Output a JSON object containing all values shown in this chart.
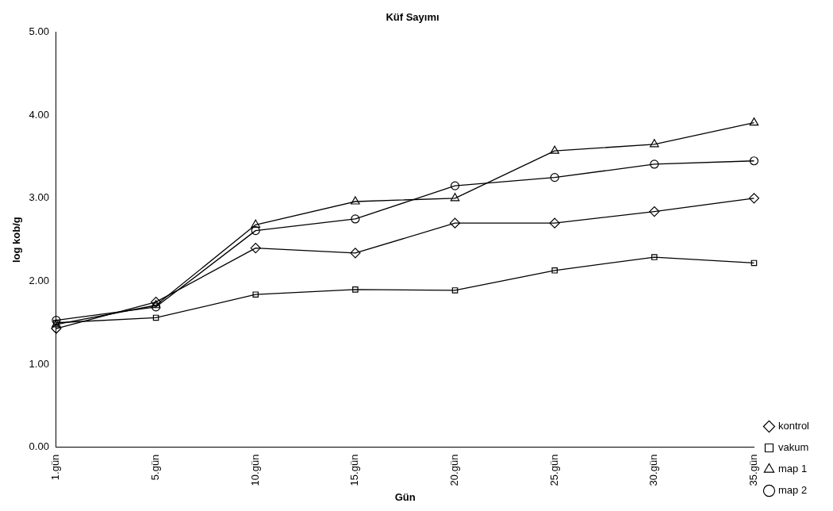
{
  "chart_data": {
    "type": "line",
    "title": "Küf Sayımı",
    "xlabel": "Gün",
    "ylabel": "log kob/g",
    "categories": [
      "1.gün",
      "5.gün",
      "10.gün",
      "15.gün",
      "20.gün",
      "25.gün",
      "30.gün",
      "35.gün"
    ],
    "series": [
      {
        "name": "kontrol",
        "color": "#000000",
        "marker": "diamond",
        "values": [
          1.43,
          1.75,
          2.4,
          2.34,
          2.7,
          2.7,
          2.84,
          3.0
        ]
      },
      {
        "name": "vakum",
        "color": "#000000",
        "marker": "square",
        "values": [
          1.5,
          1.56,
          1.84,
          1.9,
          1.89,
          2.13,
          2.29,
          2.22
        ]
      },
      {
        "name": "map 1",
        "color": "#000000",
        "marker": "triangle",
        "values": [
          1.48,
          1.71,
          2.68,
          2.96,
          3.0,
          3.57,
          3.65,
          3.91
        ]
      },
      {
        "name": "map 2",
        "color": "#000000",
        "marker": "circle",
        "values": [
          1.53,
          1.69,
          2.61,
          2.75,
          3.15,
          3.25,
          3.41,
          3.45
        ]
      }
    ],
    "ylim": [
      0,
      5
    ],
    "yticks": [
      {
        "value": 0,
        "label": "0.00"
      },
      {
        "value": 1,
        "label": "1.00"
      },
      {
        "value": 2,
        "label": "2.00"
      },
      {
        "value": 3,
        "label": "3.00"
      },
      {
        "value": 4,
        "label": "4.00"
      },
      {
        "value": 5,
        "label": "5.00"
      }
    ],
    "grid": false,
    "legend": "right",
    "line_style": "solid"
  }
}
